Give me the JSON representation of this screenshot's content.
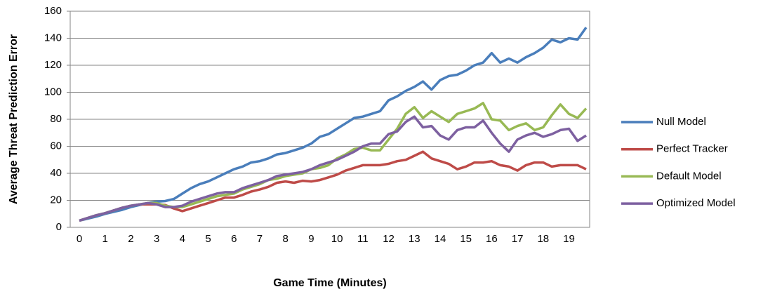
{
  "chart_data": {
    "type": "line",
    "x_label": "Game Time (Minutes)",
    "y_label": "Average Threat Prediction Error",
    "categories": [
      "0",
      null,
      null,
      "1",
      null,
      null,
      "2",
      null,
      null,
      "3",
      null,
      null,
      "4",
      null,
      null,
      "5",
      null,
      null,
      "6",
      null,
      null,
      "7",
      null,
      null,
      "8",
      null,
      null,
      "9",
      null,
      null,
      "10",
      null,
      null,
      "11",
      null,
      null,
      "12",
      null,
      null,
      "13",
      null,
      null,
      "14",
      null,
      null,
      "15",
      null,
      null,
      "16",
      null,
      null,
      "17",
      null,
      null,
      "18",
      null,
      null,
      "19",
      null,
      null
    ],
    "series": [
      {
        "name": "Null Model",
        "color": "#4a7ebb",
        "values": [
          5,
          6.5,
          8,
          10,
          11.5,
          13,
          15,
          16.5,
          18,
          19,
          19.5,
          21,
          25,
          29,
          32,
          34,
          37,
          40,
          43,
          45,
          48,
          49,
          51,
          54,
          55,
          57,
          59,
          62,
          67,
          69,
          73,
          77,
          81,
          82,
          84,
          86,
          94,
          97,
          101,
          104,
          108,
          102,
          109,
          112,
          113,
          116,
          120,
          122,
          129,
          122,
          125,
          122,
          126,
          129,
          133,
          139,
          137,
          140,
          139,
          148
        ]
      },
      {
        "name": "Perfect Tracker",
        "color": "#be4b48",
        "values": [
          5,
          7,
          9,
          10.5,
          12.5,
          14.5,
          16,
          17,
          17,
          17,
          16.5,
          14,
          12,
          14,
          16,
          18,
          20,
          22,
          22,
          24,
          26.5,
          28,
          30,
          33,
          34,
          33,
          34.5,
          34,
          35,
          37,
          39,
          42,
          44,
          46,
          46,
          46,
          47,
          49,
          50,
          53,
          56,
          51,
          49,
          47,
          43,
          45,
          48,
          48,
          49,
          46,
          45,
          42,
          46,
          48,
          48,
          45,
          46,
          46,
          46,
          43
        ]
      },
      {
        "name": "Default Model",
        "color": "#98b954",
        "values": [
          5,
          7,
          9,
          10.5,
          12.5,
          14.5,
          16,
          17,
          18,
          18,
          16,
          15,
          15,
          17,
          19,
          21,
          23,
          24,
          25,
          28,
          30,
          32,
          35,
          36,
          38,
          39,
          40,
          43,
          44,
          46,
          51,
          54,
          58,
          59,
          57,
          57,
          65,
          73,
          84,
          89,
          81,
          86,
          82,
          78,
          84,
          86,
          88,
          92,
          80,
          79,
          72,
          75,
          77,
          72,
          74,
          83,
          91,
          84,
          81,
          88
        ]
      },
      {
        "name": "Optimized Model",
        "color": "#7d60a0",
        "values": [
          5,
          7,
          9,
          10.5,
          12.5,
          14.5,
          16,
          17,
          18,
          17,
          15,
          15,
          16,
          19,
          21,
          23,
          25,
          26,
          26,
          29,
          31,
          33,
          35,
          38,
          39,
          40,
          41,
          43,
          46,
          48,
          50,
          53,
          56,
          60,
          62,
          62,
          69,
          71,
          78,
          82,
          74,
          75,
          68,
          65,
          72,
          74,
          74,
          79,
          70,
          62,
          56,
          65,
          68,
          70,
          67,
          69,
          72,
          73,
          64,
          68
        ]
      }
    ],
    "ylim": [
      0,
      160
    ],
    "yticks": [
      0,
      20,
      40,
      60,
      80,
      100,
      120,
      140,
      160
    ],
    "grid": true,
    "legend": "right"
  }
}
